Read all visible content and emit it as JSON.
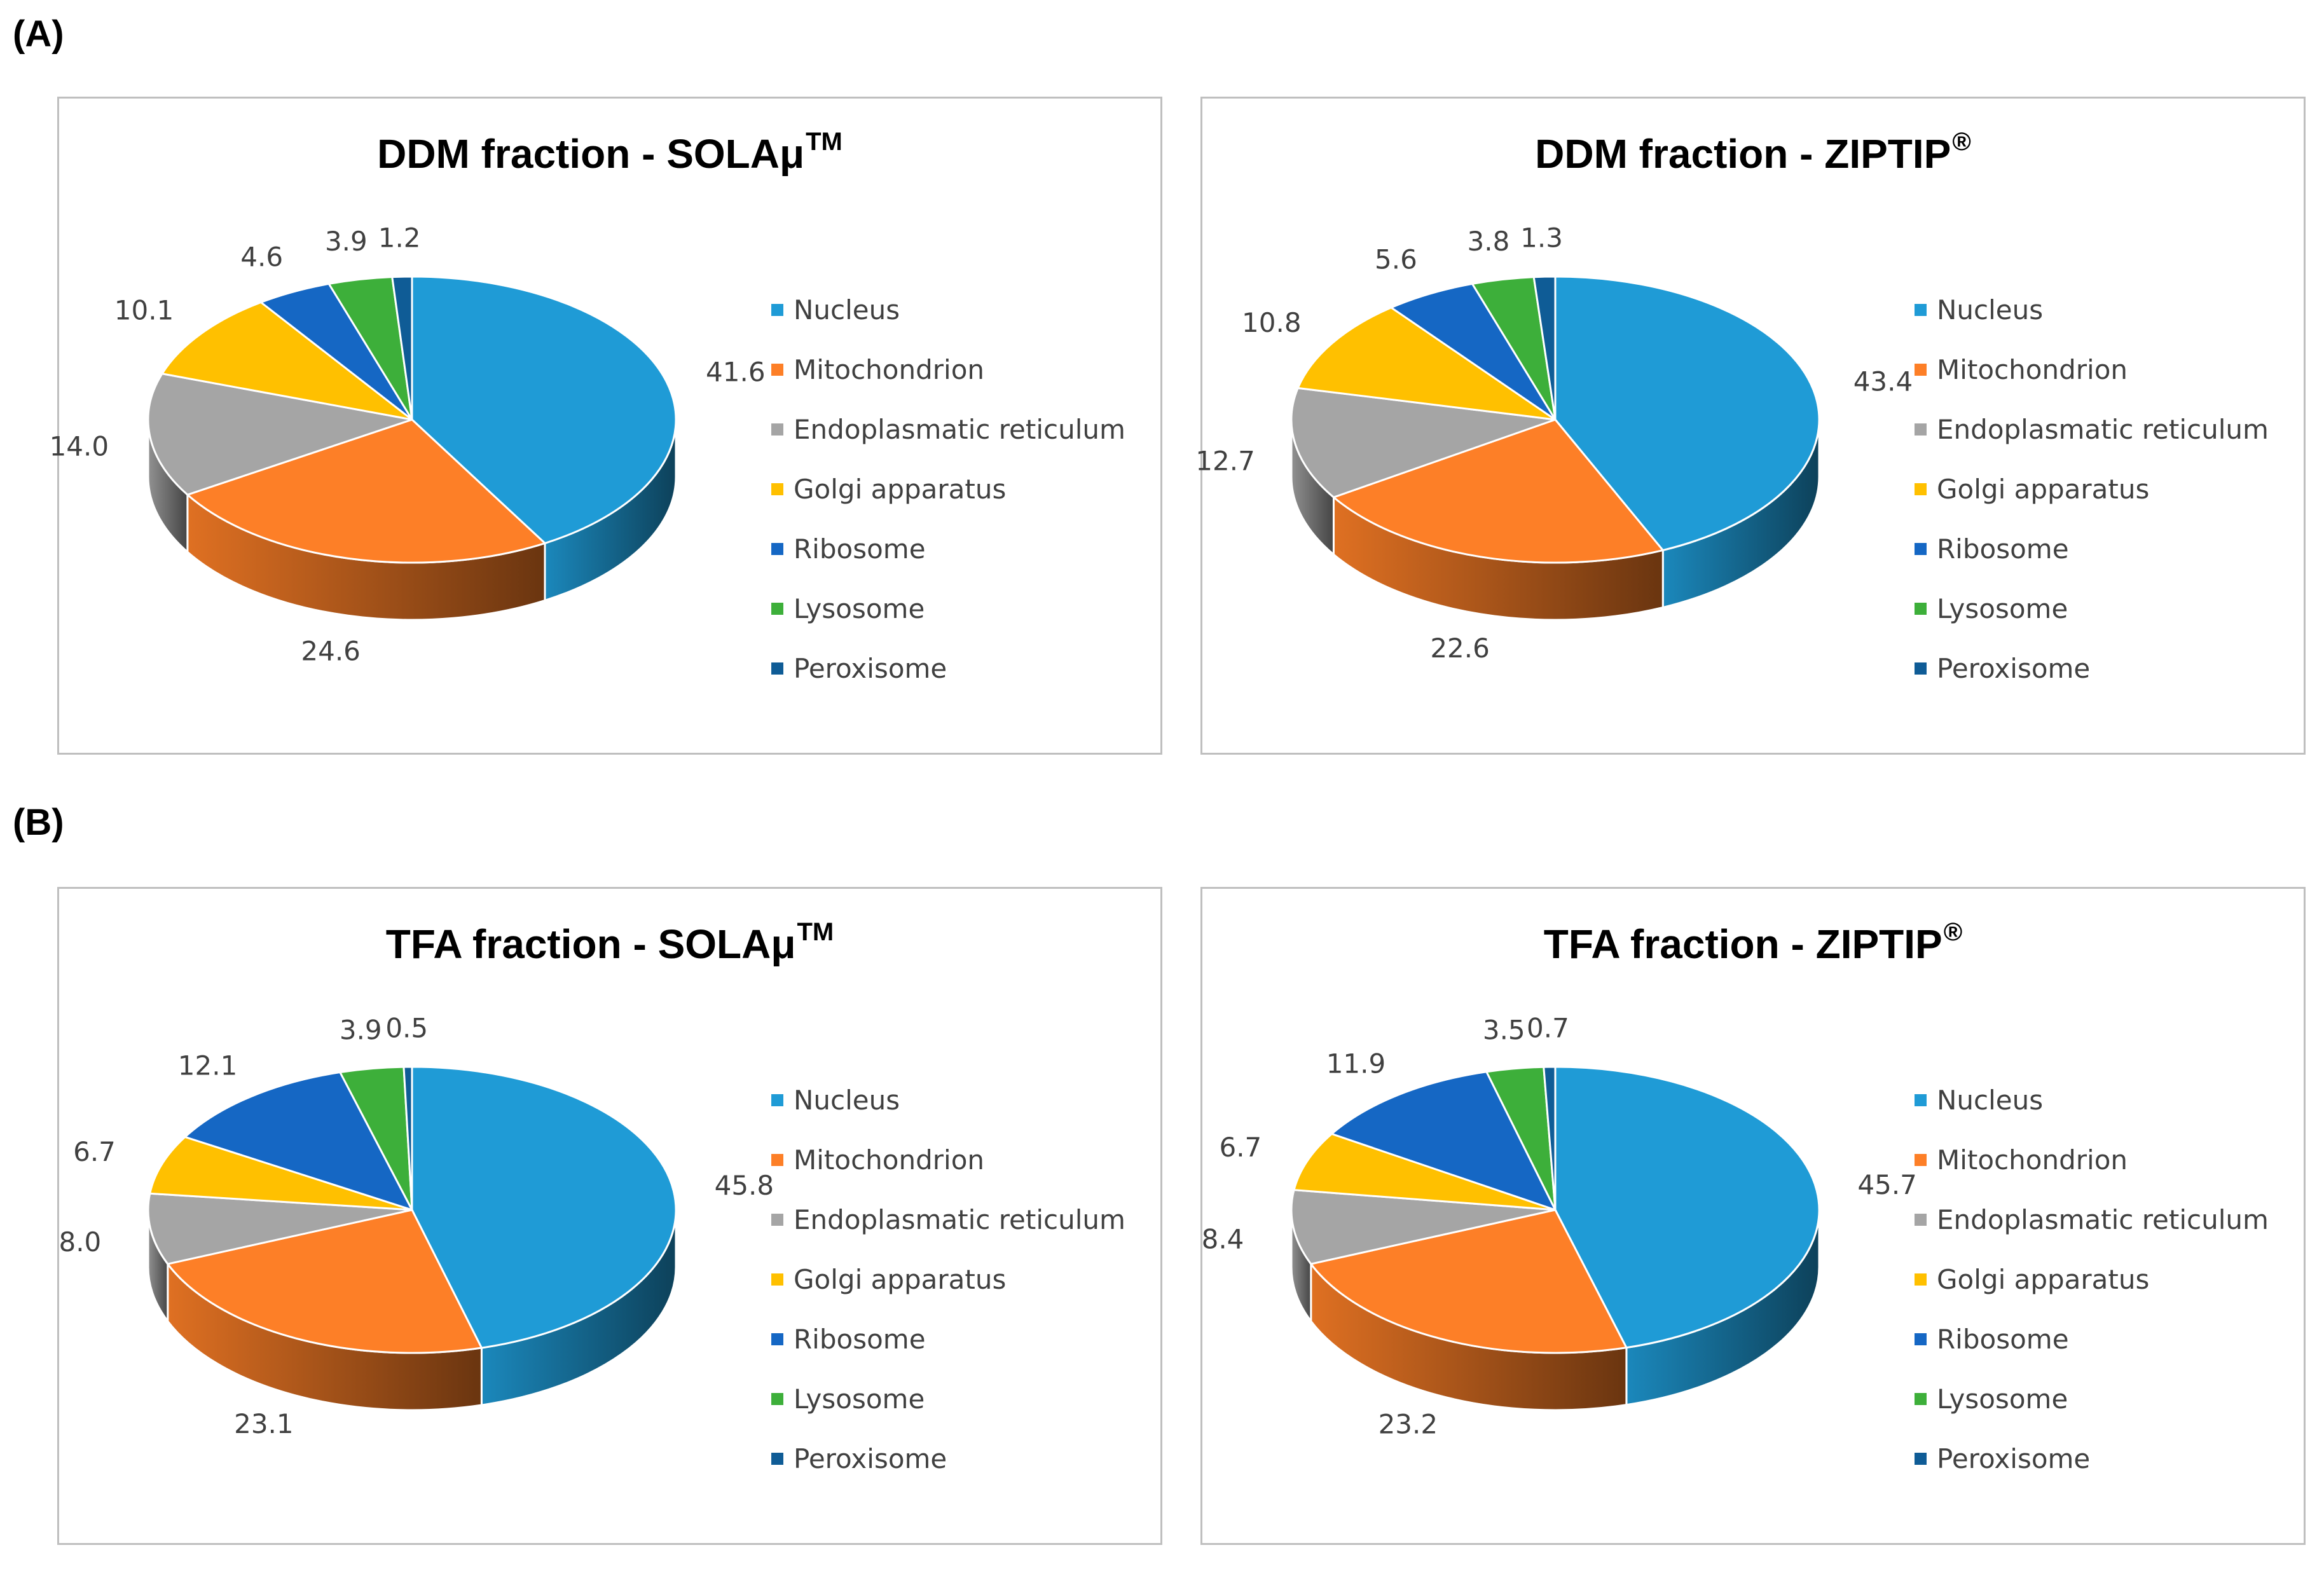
{
  "panel_labels": {
    "a": "(A)",
    "b": "(B)"
  },
  "colors": {
    "Nucleus": "#1f9bd6",
    "Mitochondrion": "#fd7f27",
    "Endoplasmatic reticulum": "#a5a5a5",
    "Golgi apparatus": "#ffc000",
    "Ribosome": "#1567c4",
    "Lysosome": "#3daf3a",
    "Peroxisome": "#0f5c96"
  },
  "chart_data": [
    {
      "type": "pie",
      "title": "DDM fraction - SOLAμ",
      "title_sup": "TM",
      "labels": [
        "Nucleus",
        "Mitochondrion",
        "Endoplasmatic reticulum",
        "Golgi apparatus",
        "Ribosome",
        "Lysosome",
        "Peroxisome"
      ],
      "values": [
        41.6,
        24.6,
        14.0,
        10.1,
        4.6,
        3.9,
        1.2
      ],
      "value_labels": [
        "41.6",
        "24.6",
        "14.0",
        "10.1",
        "4.6",
        "3.9",
        "1.2"
      ],
      "legend": "right"
    },
    {
      "type": "pie",
      "title": "DDM fraction - ZIPTIP",
      "title_sup": "®",
      "labels": [
        "Nucleus",
        "Mitochondrion",
        "Endoplasmatic reticulum",
        "Golgi apparatus",
        "Ribosome",
        "Lysosome",
        "Peroxisome"
      ],
      "values": [
        43.4,
        22.6,
        12.7,
        10.8,
        5.6,
        3.8,
        1.3
      ],
      "value_labels": [
        "43.4",
        "22.6",
        "12.7",
        "10.8",
        "5.6",
        "3.8",
        "1.3"
      ],
      "legend": "right"
    },
    {
      "type": "pie",
      "title": "TFA fraction - SOLAμ",
      "title_sup": "TM",
      "labels": [
        "Nucleus",
        "Mitochondrion",
        "Endoplasmatic reticulum",
        "Golgi apparatus",
        "Ribosome",
        "Lysosome",
        "Peroxisome"
      ],
      "values": [
        45.8,
        23.1,
        8.0,
        6.7,
        12.1,
        3.9,
        0.5
      ],
      "value_labels": [
        "45.8",
        "23.1",
        "8.0",
        "6.7",
        "12.1",
        "3.9",
        "0.5"
      ],
      "legend": "right"
    },
    {
      "type": "pie",
      "title": "TFA fraction - ZIPTIP",
      "title_sup": "®",
      "labels": [
        "Nucleus",
        "Mitochondrion",
        "Endoplasmatic reticulum",
        "Golgi apparatus",
        "Ribosome",
        "Lysosome",
        "Peroxisome"
      ],
      "values": [
        45.7,
        23.2,
        8.4,
        6.7,
        11.9,
        3.5,
        0.7
      ],
      "value_labels": [
        "45.7",
        "23.2",
        "8.4",
        "6.7",
        "11.9",
        "3.5",
        "0.7"
      ],
      "legend": "right"
    }
  ]
}
